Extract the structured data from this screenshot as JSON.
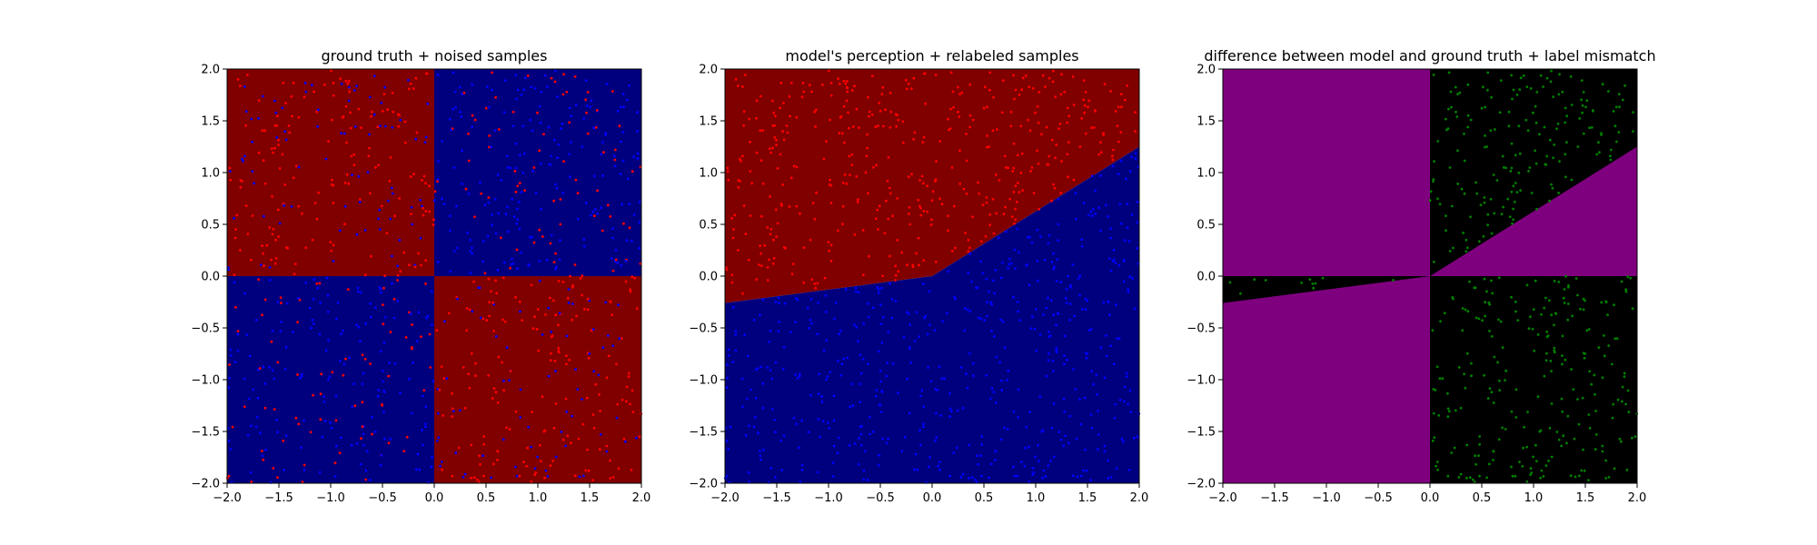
{
  "colors": {
    "dark_red": "#800000",
    "dark_blue": "#00007f",
    "red": "#ff0000",
    "blue": "#0000ff",
    "purple": "#7f007f",
    "black": "#000000",
    "green": "#008000"
  },
  "chart_data": [
    {
      "type": "scatter",
      "title": "ground truth + noised samples",
      "xlabel": "",
      "ylabel": "",
      "xlim": [
        -2.0,
        2.0
      ],
      "ylim": [
        -2.0,
        2.0
      ],
      "xticks": [
        "−2.0",
        "−1.5",
        "−1.0",
        "−0.5",
        "0.0",
        "0.5",
        "1.0",
        "1.5",
        "2.0"
      ],
      "yticks": [
        "−2.0",
        "−1.5",
        "−1.0",
        "−0.5",
        "0.0",
        "0.5",
        "1.0",
        "1.5",
        "2.0"
      ],
      "background_regions": "x*y > 0 → dark blue; x*y < 0 → dark red",
      "grid": false,
      "series": [
        {
          "color": "red",
          "points_rule": "ground-truth label (x*y < 0), with label noise",
          "approx_count": 500
        },
        {
          "color": "blue",
          "points_rule": "ground-truth label (x*y > 0), with label noise",
          "approx_count": 500
        }
      ]
    },
    {
      "type": "scatter",
      "title": "model's perception + relabeled samples",
      "xlabel": "",
      "ylabel": "",
      "xlim": [
        -2.0,
        2.0
      ],
      "ylim": [
        -2.0,
        2.0
      ],
      "xticks": [
        "−2.0",
        "−1.5",
        "−1.0",
        "−0.5",
        "0.0",
        "0.5",
        "1.0",
        "1.5",
        "2.0"
      ],
      "yticks": [
        "−2.0",
        "−1.5",
        "−1.0",
        "−0.5",
        "0.0",
        "0.5",
        "1.0",
        "1.5",
        "2.0"
      ],
      "decision_boundary": [
        [
          -2.0,
          -0.26
        ],
        [
          0.0,
          0.0
        ],
        [
          2.0,
          1.25
        ]
      ],
      "background_regions": "above boundary → dark red; below boundary → dark blue",
      "grid": false,
      "series": [
        {
          "color": "red",
          "points_rule": "samples relabeled as class above boundary",
          "approx_count": 500
        },
        {
          "color": "blue",
          "points_rule": "samples relabeled as class below boundary",
          "approx_count": 500
        }
      ]
    },
    {
      "type": "scatter",
      "title": "difference between model and ground truth + label mismatch",
      "xlabel": "",
      "ylabel": "",
      "xlim": [
        -2.0,
        2.0
      ],
      "ylim": [
        -2.0,
        2.0
      ],
      "xticks": [
        "−2.0",
        "−1.5",
        "−1.0",
        "−0.5",
        "0.0",
        "0.5",
        "1.0",
        "1.5",
        "2.0"
      ],
      "yticks": [
        "−2.0",
        "−1.5",
        "−1.0",
        "−0.5",
        "0.0",
        "0.5",
        "1.0",
        "1.5",
        "2.0"
      ],
      "background_regions": "model agrees with ground truth → purple; disagrees → black",
      "grid": false,
      "series": [
        {
          "color": "green",
          "points_rule": "samples whose relabeled class differs from ground truth",
          "approx_count": 230
        }
      ]
    }
  ]
}
